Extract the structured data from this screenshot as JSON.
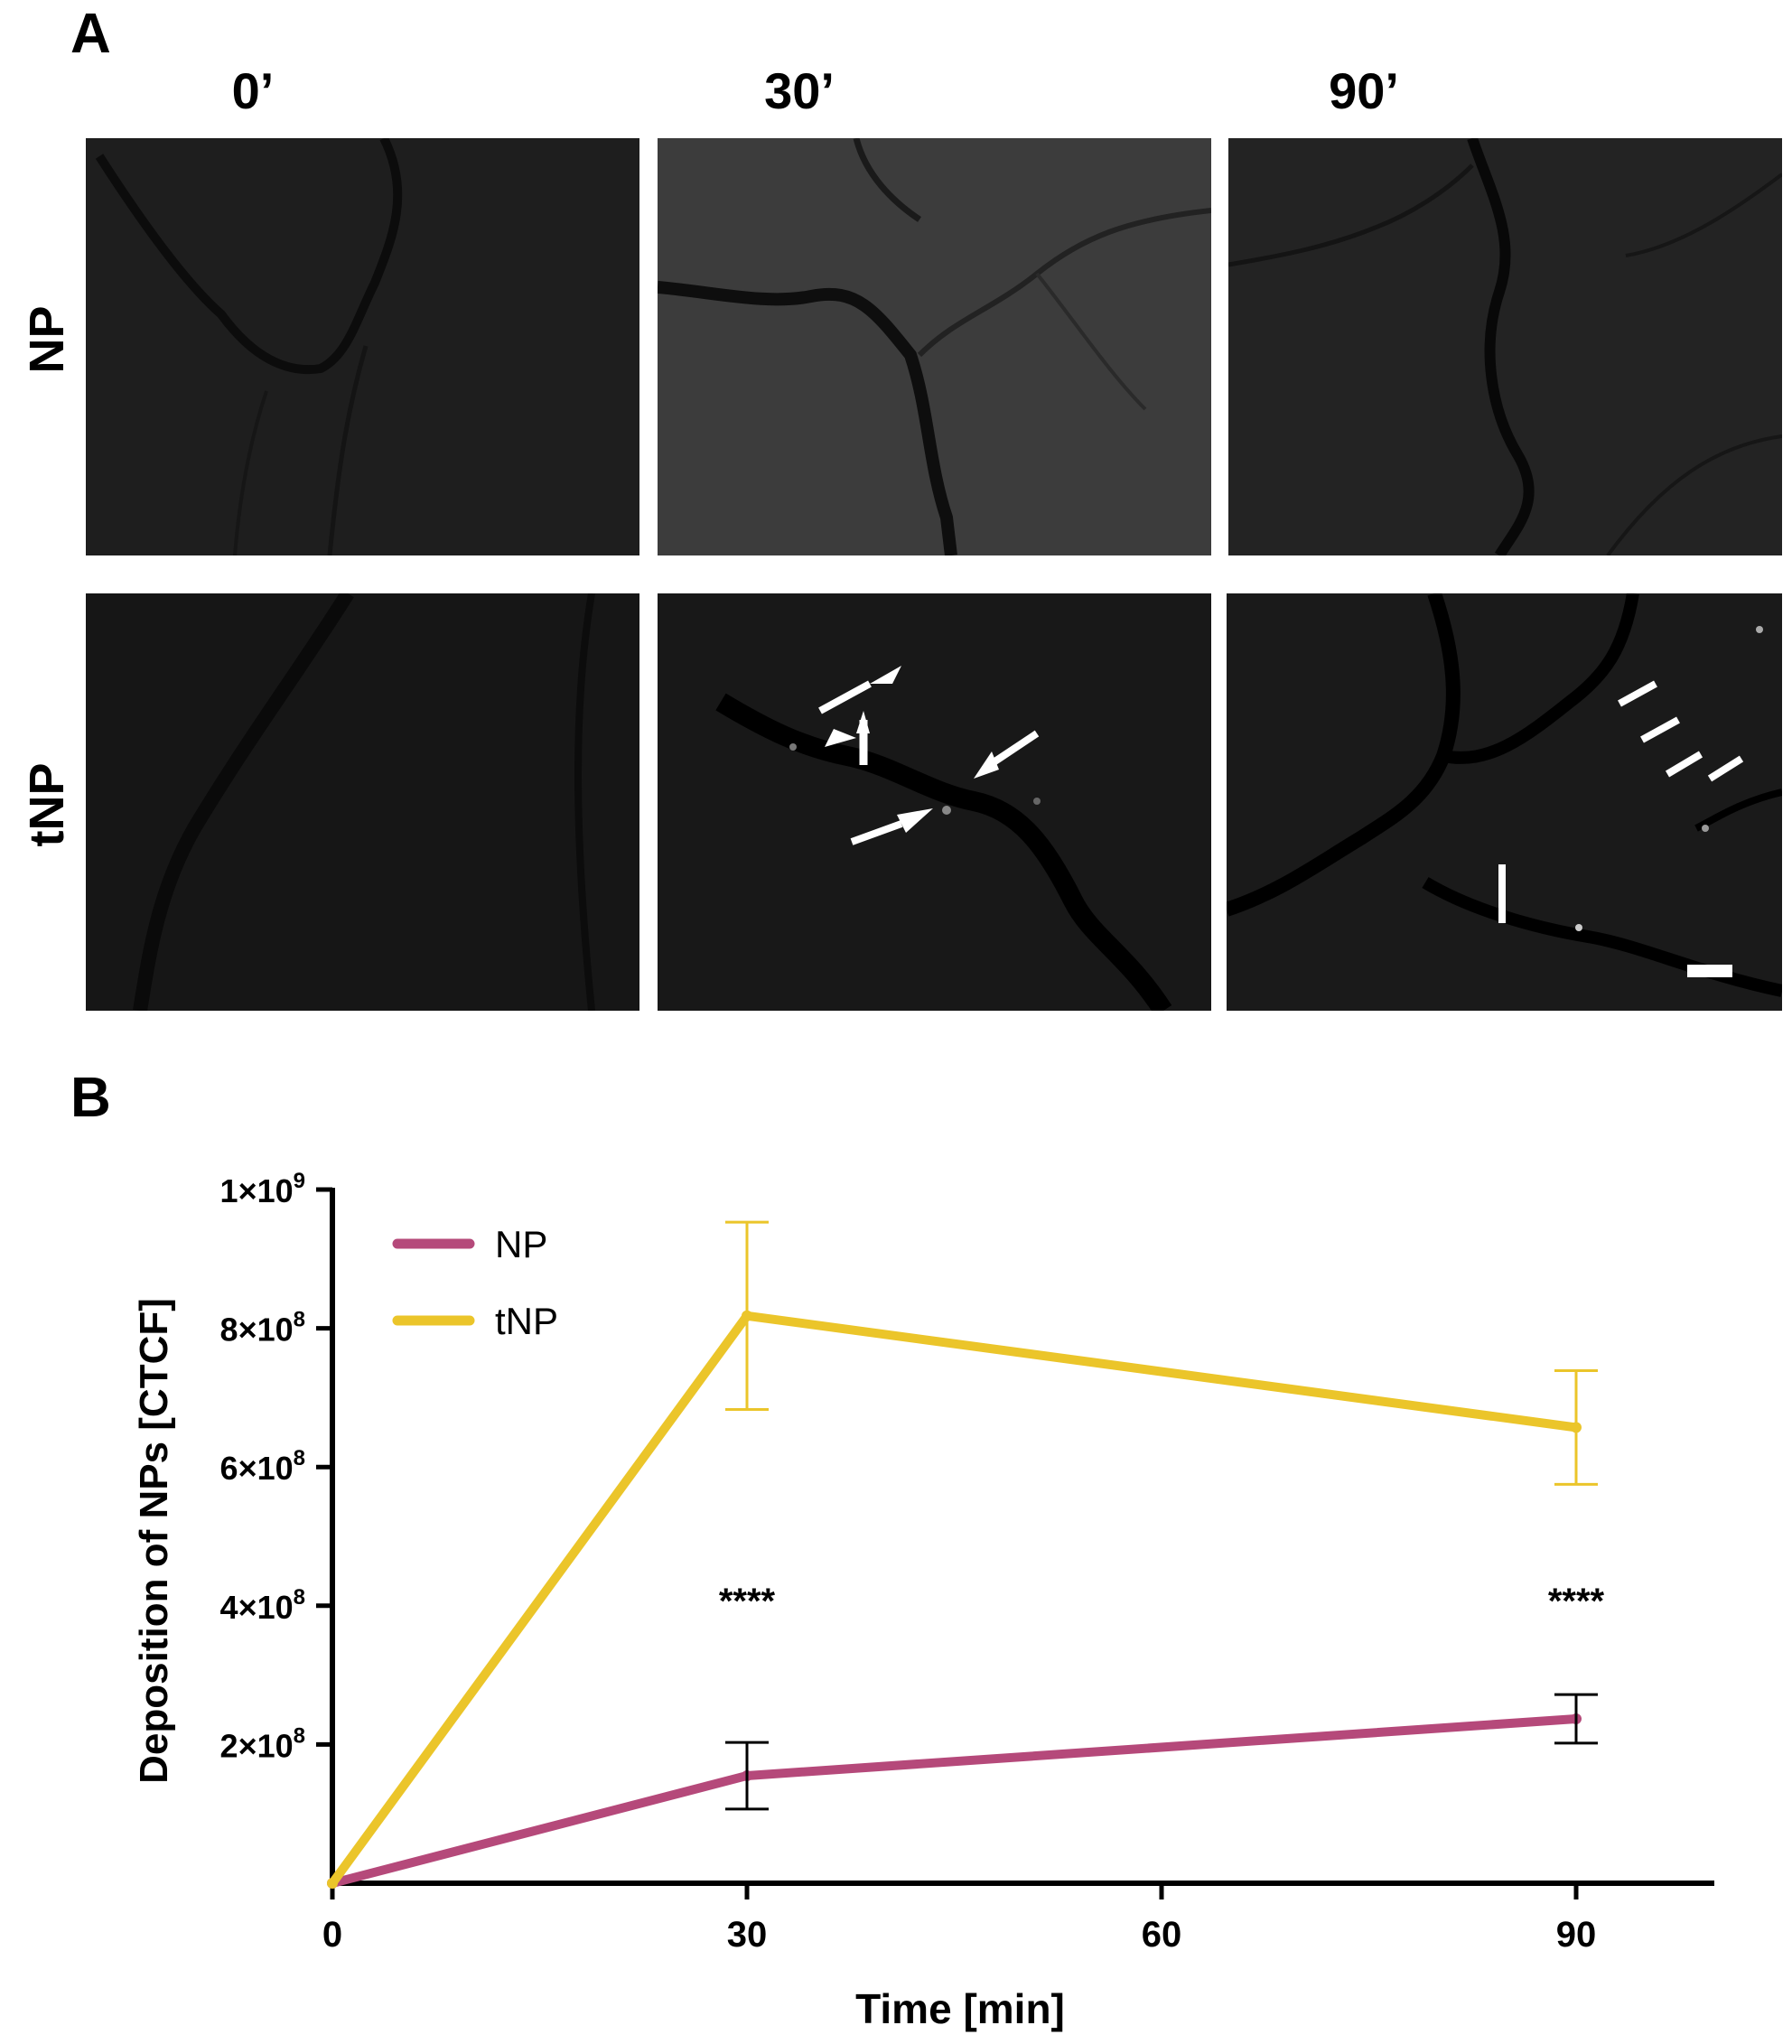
{
  "panel_a": {
    "label": "A",
    "columns": [
      "0’",
      "30’",
      "90’"
    ],
    "rows": [
      "NP",
      "tNP"
    ]
  },
  "panel_b": {
    "label": "B"
  },
  "chart_data": {
    "type": "line",
    "xlabel": "Time [min]",
    "ylabel": "Deposition of NPs [CTCF]",
    "x": [
      0,
      30,
      90
    ],
    "xlim": [
      0,
      100
    ],
    "ylim": [
      0,
      1000000000
    ],
    "x_ticks": [
      "0",
      "30",
      "60",
      "90"
    ],
    "x_tick_values": [
      0,
      30,
      60,
      90
    ],
    "y_ticks": [
      {
        "base": "2×10",
        "exp": "8",
        "value": 200000000
      },
      {
        "base": "4×10",
        "exp": "8",
        "value": 400000000
      },
      {
        "base": "6×10",
        "exp": "8",
        "value": 600000000
      },
      {
        "base": "8×10",
        "exp": "8",
        "value": 800000000
      },
      {
        "base": "1×10",
        "exp": "9",
        "value": 1000000000
      }
    ],
    "series": [
      {
        "name": "NP",
        "color": "#b5497a",
        "error_color": "#000000",
        "values": [
          0,
          155000000,
          237000000
        ],
        "errors": [
          0,
          48000000,
          35000000
        ]
      },
      {
        "name": "tNP",
        "color": "#ebc52a",
        "error_color": "#ebc52a",
        "values": [
          0,
          818000000,
          657000000
        ],
        "errors": [
          0,
          135000000,
          82000000
        ]
      }
    ],
    "annotations": [
      {
        "x": 30,
        "text": "****"
      },
      {
        "x": 90,
        "text": "****"
      }
    ],
    "legend_position": "top-left",
    "grid": false
  }
}
